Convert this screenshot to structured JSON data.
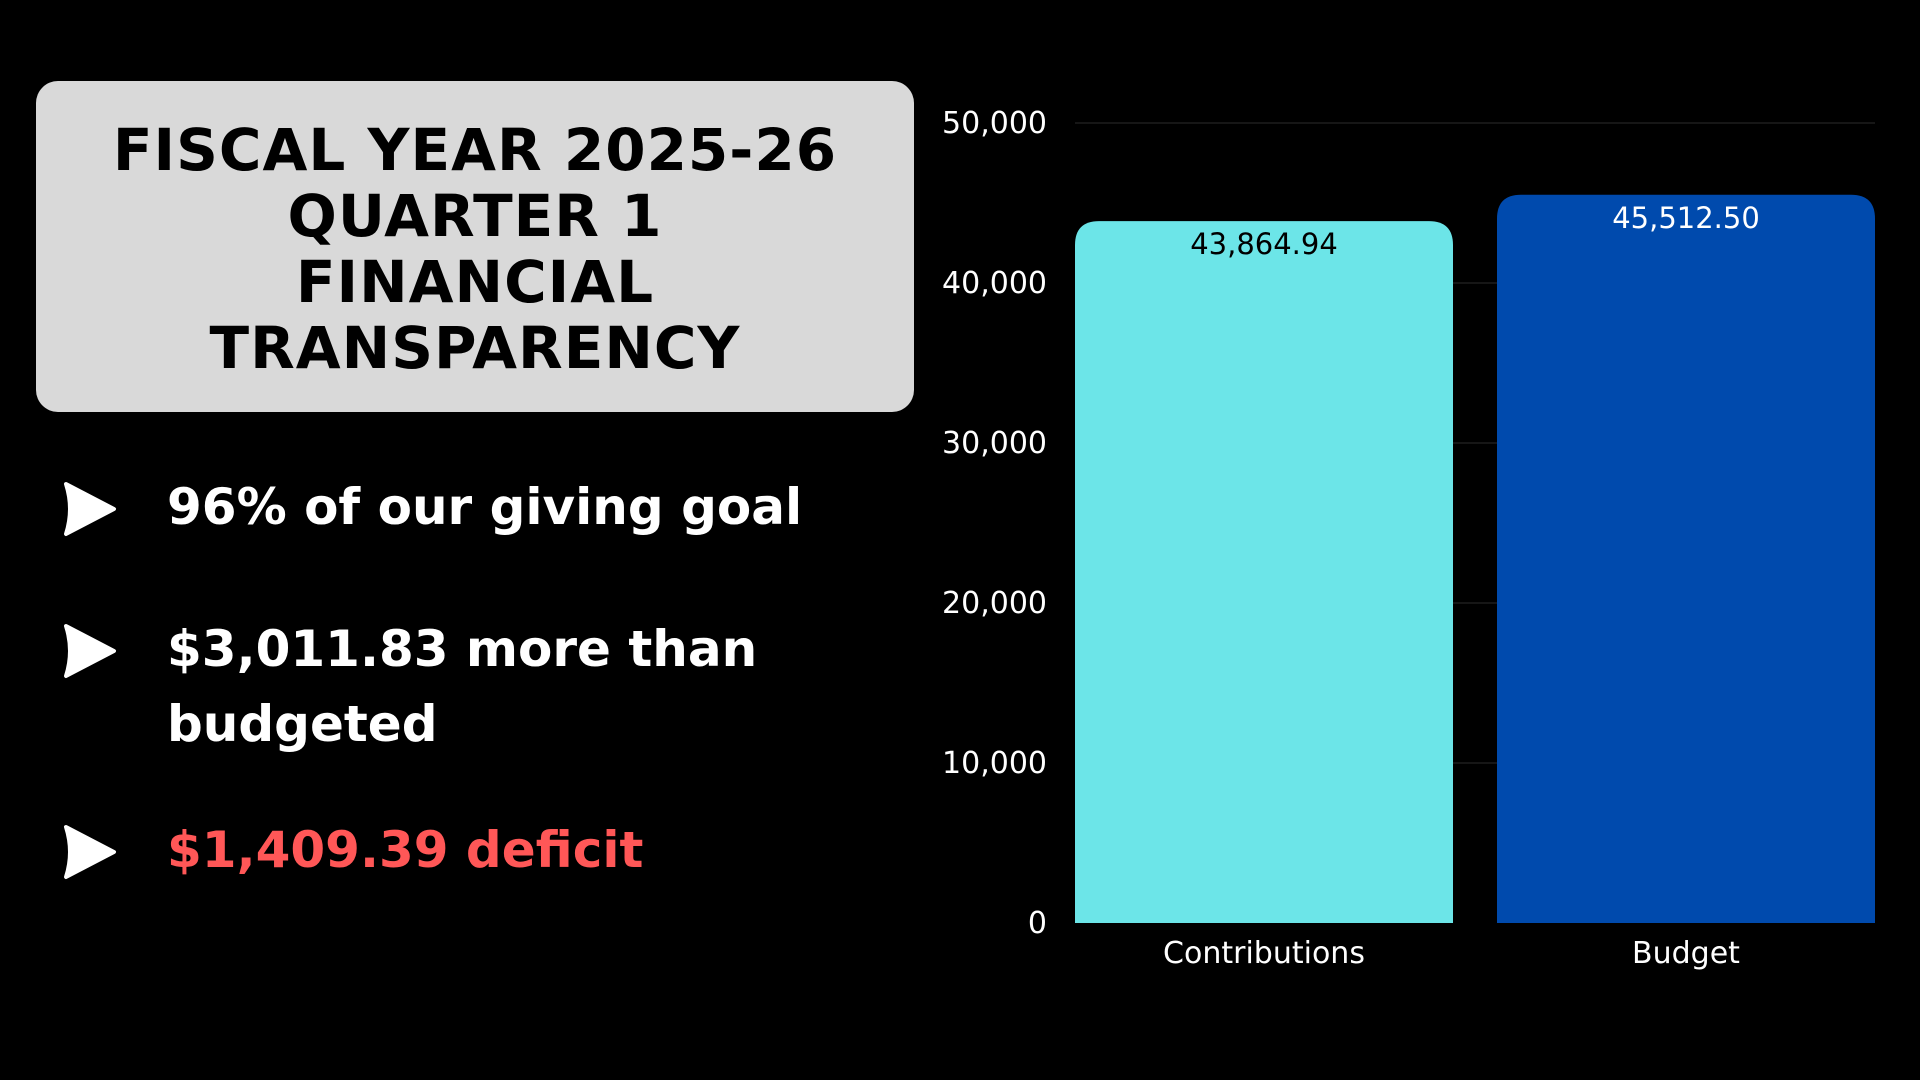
{
  "title": {
    "lines": [
      "FISCAL YEAR 2025-26",
      "QUARTER 1",
      "FINANCIAL",
      "TRANSPARENCY"
    ]
  },
  "bullets": [
    {
      "text": "96% of our giving goal",
      "icon": "arrow-right-icon",
      "color": "#ffffff"
    },
    {
      "text": "$3,011.83 more than budgeted",
      "icon": "arrow-right-icon",
      "color": "#ffffff"
    },
    {
      "text": "$1,409.39 deficit",
      "icon": "arrow-right-icon",
      "color": "#ff5757"
    }
  ],
  "chart_data": {
    "type": "bar",
    "categories": [
      "Contributions",
      "Budget"
    ],
    "values": [
      43864.94,
      45512.5
    ],
    "value_labels": [
      "43,864.94",
      "45,512.50"
    ],
    "colors": [
      "#6ce5e8",
      "#004aad"
    ],
    "value_label_colors": [
      "#000000",
      "#ffffff"
    ],
    "yticks": [
      0,
      10000,
      20000,
      30000,
      40000,
      50000
    ],
    "ytick_labels": [
      "0",
      "10,000",
      "20,000",
      "30,000",
      "40,000",
      "50,000"
    ],
    "ylim": [
      0,
      50000
    ],
    "grid": true,
    "title": "",
    "xlabel": "",
    "ylabel": ""
  }
}
